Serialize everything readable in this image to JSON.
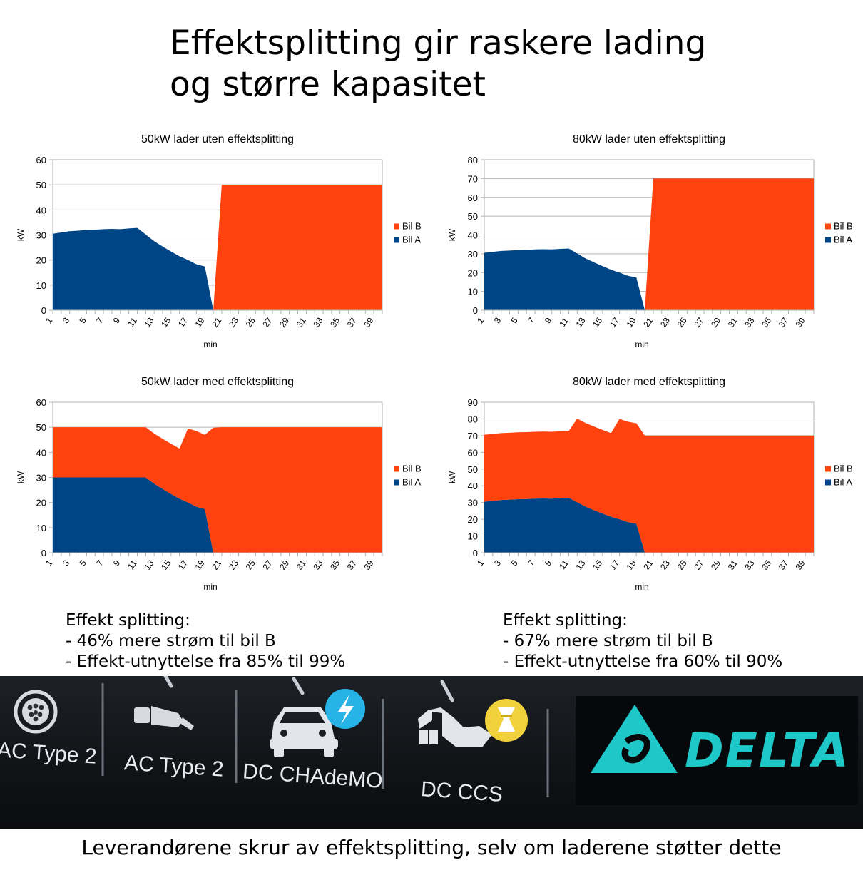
{
  "header": {
    "title_line1": "Effektsplitting gir raskere lading",
    "title_line2": "og større kapasitet"
  },
  "colors": {
    "bil_a": "#004586",
    "bil_b": "#ff420e",
    "grid": "#b3b3b3",
    "photo_text": "#e8ecf0",
    "delta_logo": "#1ec8c8"
  },
  "chart_data": [
    {
      "type": "area",
      "stacked": true,
      "title": "50kW lader uten effektsplitting",
      "xlabel": "min",
      "ylabel": "kW",
      "ylim": [
        0,
        60
      ],
      "yticks": [
        0,
        10,
        20,
        30,
        40,
        50,
        60
      ],
      "xticks": [
        "1",
        "3",
        "5",
        "7",
        "9",
        "11",
        "13",
        "15",
        "17",
        "19",
        "21",
        "23",
        "25",
        "27",
        "29",
        "31",
        "33",
        "35",
        "37",
        "39"
      ],
      "grid": true,
      "legend": "right",
      "x": [
        1,
        2,
        3,
        4,
        5,
        6,
        7,
        8,
        9,
        10,
        11,
        12,
        13,
        14,
        15,
        16,
        17,
        18,
        19,
        20,
        21,
        22,
        23,
        24,
        25,
        26,
        27,
        28,
        29,
        30,
        31,
        32,
        33,
        34,
        35,
        36,
        37,
        38,
        39,
        40
      ],
      "series": [
        {
          "name": "Bil A",
          "color_key": "bil_a",
          "values": [
            30.5,
            31,
            31.5,
            31.7,
            32,
            32.1,
            32.3,
            32.4,
            32.3,
            32.6,
            32.8,
            30.2,
            27.5,
            25.4,
            23.4,
            21.5,
            20,
            18.3,
            17.4,
            0,
            0,
            0,
            0,
            0,
            0,
            0,
            0,
            0,
            0,
            0,
            0,
            0,
            0,
            0,
            0,
            0,
            0,
            0,
            0,
            0
          ]
        },
        {
          "name": "Bil B",
          "color_key": "bil_b",
          "values": [
            0,
            0,
            0,
            0,
            0,
            0,
            0,
            0,
            0,
            0,
            0,
            0,
            0,
            0,
            0,
            0,
            0,
            0,
            0,
            0,
            50,
            50,
            50,
            50,
            50,
            50,
            50,
            50,
            50,
            50,
            50,
            50,
            50,
            50,
            50,
            50,
            50,
            50,
            50,
            50
          ]
        }
      ]
    },
    {
      "type": "area",
      "stacked": true,
      "title": "80kW lader uten effektsplitting",
      "xlabel": "min",
      "ylabel": "kW",
      "ylim": [
        0,
        80
      ],
      "yticks": [
        0,
        10,
        20,
        30,
        40,
        50,
        60,
        70,
        80
      ],
      "xticks": [
        "1",
        "3",
        "5",
        "7",
        "9",
        "11",
        "13",
        "15",
        "17",
        "19",
        "21",
        "23",
        "25",
        "27",
        "29",
        "31",
        "33",
        "35",
        "37",
        "39"
      ],
      "grid": true,
      "legend": "right",
      "x": [
        1,
        2,
        3,
        4,
        5,
        6,
        7,
        8,
        9,
        10,
        11,
        12,
        13,
        14,
        15,
        16,
        17,
        18,
        19,
        20,
        21,
        22,
        23,
        24,
        25,
        26,
        27,
        28,
        29,
        30,
        31,
        32,
        33,
        34,
        35,
        36,
        37,
        38,
        39,
        40
      ],
      "series": [
        {
          "name": "Bil A",
          "color_key": "bil_a",
          "values": [
            30.5,
            31,
            31.5,
            31.7,
            32,
            32.1,
            32.3,
            32.4,
            32.3,
            32.6,
            32.8,
            30.2,
            27.5,
            25.4,
            23.4,
            21.5,
            20,
            18.3,
            17.4,
            0,
            0,
            0,
            0,
            0,
            0,
            0,
            0,
            0,
            0,
            0,
            0,
            0,
            0,
            0,
            0,
            0,
            0,
            0,
            0,
            0
          ]
        },
        {
          "name": "Bil B",
          "color_key": "bil_b",
          "values": [
            0,
            0,
            0,
            0,
            0,
            0,
            0,
            0,
            0,
            0,
            0,
            0,
            0,
            0,
            0,
            0,
            0,
            0,
            0,
            0,
            70,
            70,
            70,
            70,
            70,
            70,
            70,
            70,
            70,
            70,
            70,
            70,
            70,
            70,
            70,
            70,
            70,
            70,
            70,
            70
          ]
        }
      ]
    },
    {
      "type": "area",
      "stacked": true,
      "title": "50kW lader med effektsplitting",
      "xlabel": "min",
      "ylabel": "kW",
      "ylim": [
        0,
        60
      ],
      "yticks": [
        0,
        10,
        20,
        30,
        40,
        50,
        60
      ],
      "xticks": [
        "1",
        "3",
        "5",
        "7",
        "9",
        "11",
        "13",
        "15",
        "17",
        "19",
        "21",
        "23",
        "25",
        "27",
        "29",
        "31",
        "33",
        "35",
        "37",
        "39"
      ],
      "grid": true,
      "legend": "right",
      "x": [
        1,
        2,
        3,
        4,
        5,
        6,
        7,
        8,
        9,
        10,
        11,
        12,
        13,
        14,
        15,
        16,
        17,
        18,
        19,
        20,
        21,
        22,
        23,
        24,
        25,
        26,
        27,
        28,
        29,
        30,
        31,
        32,
        33,
        34,
        35,
        36,
        37,
        38,
        39,
        40
      ],
      "series": [
        {
          "name": "Bil A",
          "color_key": "bil_a",
          "values": [
            30,
            30,
            30,
            30,
            30,
            30,
            30,
            30,
            30,
            30,
            30,
            30,
            27.5,
            25.4,
            23.4,
            21.5,
            20,
            18.3,
            17.4,
            0,
            0,
            0,
            0,
            0,
            0,
            0,
            0,
            0,
            0,
            0,
            0,
            0,
            0,
            0,
            0,
            0,
            0,
            0,
            0,
            0
          ]
        },
        {
          "name": "Bil B",
          "color_key": "bil_b",
          "values": [
            20,
            20,
            20,
            20,
            20,
            20,
            20,
            20,
            20,
            20,
            20,
            20,
            20,
            20,
            20,
            20,
            29.5,
            30.2,
            29.6,
            49.8,
            50,
            50,
            50,
            50,
            50,
            50,
            50,
            50,
            50,
            50,
            50,
            50,
            50,
            50,
            50,
            50,
            50,
            50,
            50,
            50
          ]
        }
      ]
    },
    {
      "type": "area",
      "stacked": true,
      "title": "80kW lader med effektsplitting",
      "xlabel": "min",
      "ylabel": "kW",
      "ylim": [
        0,
        90
      ],
      "yticks": [
        0,
        10,
        20,
        30,
        40,
        50,
        60,
        70,
        80,
        90
      ],
      "xticks": [
        "1",
        "3",
        "5",
        "7",
        "9",
        "11",
        "13",
        "15",
        "17",
        "19",
        "21",
        "23",
        "25",
        "27",
        "29",
        "31",
        "33",
        "35",
        "37",
        "39"
      ],
      "grid": true,
      "legend": "right",
      "x": [
        1,
        2,
        3,
        4,
        5,
        6,
        7,
        8,
        9,
        10,
        11,
        12,
        13,
        14,
        15,
        16,
        17,
        18,
        19,
        20,
        21,
        22,
        23,
        24,
        25,
        26,
        27,
        28,
        29,
        30,
        31,
        32,
        33,
        34,
        35,
        36,
        37,
        38,
        39,
        40
      ],
      "series": [
        {
          "name": "Bil A",
          "color_key": "bil_a",
          "values": [
            30.5,
            31,
            31.5,
            31.7,
            32,
            32.1,
            32.3,
            32.4,
            32.3,
            32.6,
            32.8,
            30.2,
            27.5,
            25.4,
            23.4,
            21.5,
            20,
            18.3,
            17.4,
            0,
            0,
            0,
            0,
            0,
            0,
            0,
            0,
            0,
            0,
            0,
            0,
            0,
            0,
            0,
            0,
            0,
            0,
            0,
            0,
            0
          ]
        },
        {
          "name": "Bil B",
          "color_key": "bil_b",
          "values": [
            40,
            40,
            40,
            40,
            40,
            40,
            40,
            40,
            40,
            40,
            40,
            50,
            50,
            50,
            50,
            50,
            60,
            60,
            60,
            70,
            70,
            70,
            70,
            70,
            70,
            70,
            70,
            70,
            70,
            70,
            70,
            70,
            70,
            70,
            70,
            70,
            70,
            70,
            70,
            70
          ]
        }
      ]
    }
  ],
  "stats_left": {
    "heading": "Effekt splitting:",
    "line1": "- 46% mere strøm til bil B",
    "line2": "- Effekt-utnyttelse fra 85% til 99%"
  },
  "stats_right": {
    "heading": "Effekt splitting:",
    "line1": "- 67% mere strøm til bil B",
    "line2": "- Effekt-utnyttelse fra 60% til 90%"
  },
  "photo": {
    "connectors": [
      {
        "label": "AC Type 2",
        "icon": "type2-socket-icon"
      },
      {
        "label": "AC Type 2",
        "icon": "type2-plug-icon"
      },
      {
        "label": "DC CHAdeMO",
        "icon": "car-charging-icon"
      },
      {
        "label": "DC CCS",
        "icon": "ccs-plug-icon"
      }
    ],
    "brand": "DELTA",
    "brand_icon": "delta-logo-icon"
  },
  "footer": {
    "text": "Leverandørene skrur av effektsplitting, selv om laderene støtter dette"
  }
}
